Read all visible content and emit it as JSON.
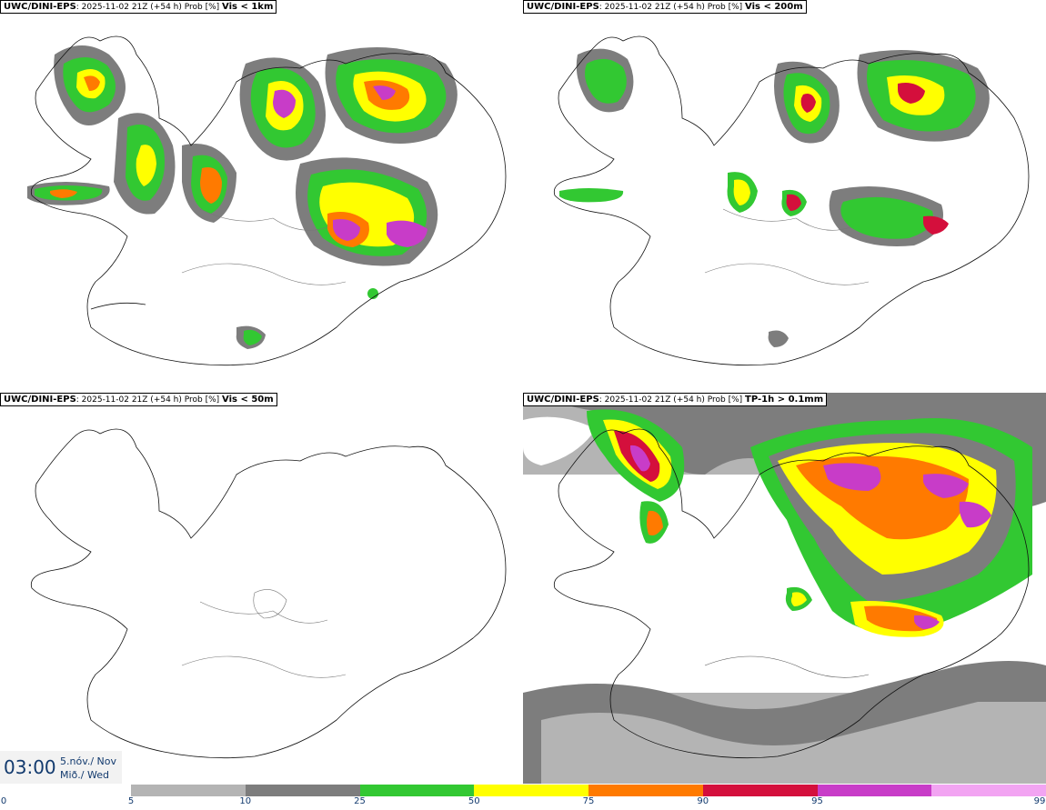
{
  "panels": [
    {
      "model": "UWC/DINI-EPS",
      "run": ": 2025-11-02 21Z (+54 h) Prob [%]",
      "var": "Vis < 1km"
    },
    {
      "model": "UWC/DINI-EPS",
      "run": ": 2025-11-02 21Z (+54 h) Prob [%]",
      "var": "Vis < 200m"
    },
    {
      "model": "UWC/DINI-EPS",
      "run": ": 2025-11-02 21Z (+54 h) Prob [%]",
      "var": "Vis < 50m"
    },
    {
      "model": "UWC/DINI-EPS",
      "run": ": 2025-11-02 21Z (+54 h) Prob [%]",
      "var": "TP-1h > 0.1mm"
    }
  ],
  "time": {
    "clock": "03:00",
    "date": "5.nóv./ Nov",
    "weekday": "Mið./ Wed"
  },
  "legend": {
    "ticks": [
      "0",
      "5",
      "10",
      "25",
      "50",
      "75",
      "90",
      "95",
      "99"
    ],
    "colors": [
      "#b4b4b4",
      "#7d7d7d",
      "#32c832",
      "#ffff00",
      "#ff7a00",
      "#d40f3c",
      "#c83cc8",
      "#f2a4f2"
    ]
  }
}
